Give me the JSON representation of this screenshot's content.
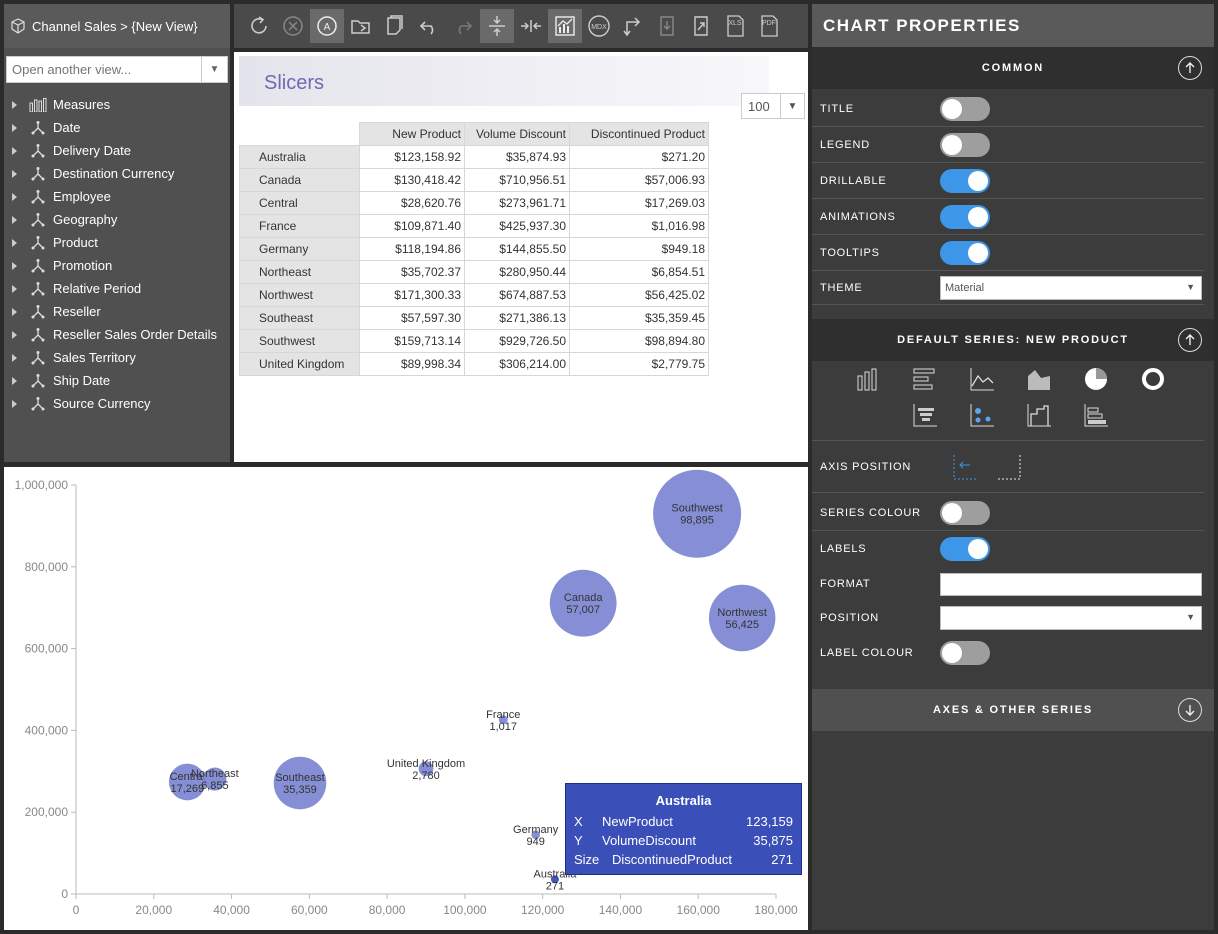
{
  "breadcrumb": "Channel Sales > {New View}",
  "view_select": {
    "placeholder": "Open another view..."
  },
  "dimensions": [
    {
      "label": "Measures",
      "icon": "measures-icon"
    },
    {
      "label": "Date",
      "icon": "hierarchy-icon"
    },
    {
      "label": "Delivery Date",
      "icon": "hierarchy-icon"
    },
    {
      "label": "Destination Currency",
      "icon": "hierarchy-icon"
    },
    {
      "label": "Employee",
      "icon": "hierarchy-icon"
    },
    {
      "label": "Geography",
      "icon": "hierarchy-icon"
    },
    {
      "label": "Product",
      "icon": "hierarchy-icon"
    },
    {
      "label": "Promotion",
      "icon": "hierarchy-icon"
    },
    {
      "label": "Relative Period",
      "icon": "hierarchy-icon"
    },
    {
      "label": "Reseller",
      "icon": "hierarchy-icon"
    },
    {
      "label": "Reseller Sales Order Details",
      "icon": "hierarchy-icon"
    },
    {
      "label": "Sales Territory",
      "icon": "hierarchy-icon"
    },
    {
      "label": "Ship Date",
      "icon": "hierarchy-icon"
    },
    {
      "label": "Source Currency",
      "icon": "hierarchy-icon"
    }
  ],
  "toolbar": {
    "mdx_label": "MDX",
    "xls_label": "XLS",
    "pdf_label": "PDF",
    "auto_label": "A"
  },
  "slicers": {
    "title": "Slicers"
  },
  "page_size": "100",
  "table": {
    "columns": [
      "New Product",
      "Volume Discount",
      "Discontinued Product"
    ],
    "rows": [
      {
        "name": "Australia",
        "values": [
          "$123,158.92",
          "$35,874.93",
          "$271.20"
        ]
      },
      {
        "name": "Canada",
        "values": [
          "$130,418.42",
          "$710,956.51",
          "$57,006.93"
        ]
      },
      {
        "name": "Central",
        "values": [
          "$28,620.76",
          "$273,961.71",
          "$17,269.03"
        ]
      },
      {
        "name": "France",
        "values": [
          "$109,871.40",
          "$425,937.30",
          "$1,016.98"
        ]
      },
      {
        "name": "Germany",
        "values": [
          "$118,194.86",
          "$144,855.50",
          "$949.18"
        ]
      },
      {
        "name": "Northeast",
        "values": [
          "$35,702.37",
          "$280,950.44",
          "$6,854.51"
        ]
      },
      {
        "name": "Northwest",
        "values": [
          "$171,300.33",
          "$674,887.53",
          "$56,425.02"
        ]
      },
      {
        "name": "Southeast",
        "values": [
          "$57,597.30",
          "$271,386.13",
          "$35,359.45"
        ]
      },
      {
        "name": "Southwest",
        "values": [
          "$159,713.14",
          "$929,726.50",
          "$98,894.80"
        ]
      },
      {
        "name": "United Kingdom",
        "values": [
          "$89,998.34",
          "$306,214.00",
          "$2,779.75"
        ]
      }
    ]
  },
  "chart_data": {
    "type": "scatter",
    "bubble": true,
    "x_field": "New Product",
    "y_field": "Volume Discount",
    "size_field": "Discontinued Product",
    "xlim": [
      0,
      180000
    ],
    "ylim": [
      0,
      1000000
    ],
    "x_ticks": [
      "0",
      "20,000",
      "40,000",
      "60,000",
      "80,000",
      "100,000",
      "120,000",
      "140,000",
      "160,000",
      "180,000"
    ],
    "x_tick_values": [
      0,
      20000,
      40000,
      60000,
      80000,
      100000,
      120000,
      140000,
      160000,
      180000
    ],
    "y_ticks": [
      "0",
      "200,000",
      "400,000",
      "600,000",
      "800,000",
      "1,000,000"
    ],
    "y_tick_values": [
      0,
      200000,
      400000,
      600000,
      800000,
      1000000
    ],
    "points": [
      {
        "name": "Australia",
        "x": 123159,
        "y": 35875,
        "size": 271,
        "label": "271"
      },
      {
        "name": "Canada",
        "x": 130418,
        "y": 710957,
        "size": 57007,
        "label": "57,007"
      },
      {
        "name": "Central",
        "x": 28621,
        "y": 273962,
        "size": 17269,
        "label": "17,269"
      },
      {
        "name": "France",
        "x": 109871,
        "y": 425937,
        "size": 1017,
        "label": "1,017"
      },
      {
        "name": "Germany",
        "x": 118195,
        "y": 144856,
        "size": 949,
        "label": "949"
      },
      {
        "name": "Northeast",
        "x": 35702,
        "y": 280950,
        "size": 6855,
        "label": "6,855"
      },
      {
        "name": "Northwest",
        "x": 171300,
        "y": 674888,
        "size": 56425,
        "label": "56,425"
      },
      {
        "name": "Southeast",
        "x": 57597,
        "y": 271386,
        "size": 35359,
        "label": "35,359"
      },
      {
        "name": "Southwest",
        "x": 159713,
        "y": 929727,
        "size": 98895,
        "label": "98,895"
      },
      {
        "name": "United Kingdom",
        "x": 89998,
        "y": 306214,
        "size": 2780,
        "label": "2,780"
      }
    ],
    "color": "#7f89d3"
  },
  "tooltip": {
    "title": "Australia",
    "rows": [
      {
        "key": "X",
        "name": "NewProduct",
        "value": "123,159"
      },
      {
        "key": "Y",
        "name": "VolumeDiscount",
        "value": "35,875"
      },
      {
        "key": "Size",
        "name": "DiscontinuedProduct",
        "value": "271"
      }
    ]
  },
  "properties": {
    "title": "CHART PROPERTIES",
    "common_header": "COMMON",
    "rows": [
      {
        "label": "TITLE",
        "on": false
      },
      {
        "label": "LEGEND",
        "on": false
      },
      {
        "label": "DRILLABLE",
        "on": true
      },
      {
        "label": "ANIMATIONS",
        "on": true
      },
      {
        "label": "TOOLTIPS",
        "on": true
      }
    ],
    "theme_label": "THEME",
    "theme_value": "Material",
    "series_header": "DEFAULT SERIES:  NEW PRODUCT",
    "axis_position_label": "AXIS POSITION",
    "series_colour_label": "SERIES COLOUR",
    "series_colour_on": false,
    "labels_label": "LABELS",
    "labels_on": true,
    "format_label": "FORMAT",
    "position_label": "POSITION",
    "label_colour_label": "LABEL COLOUR",
    "label_colour_on": false,
    "axes_header": "AXES & OTHER SERIES"
  }
}
